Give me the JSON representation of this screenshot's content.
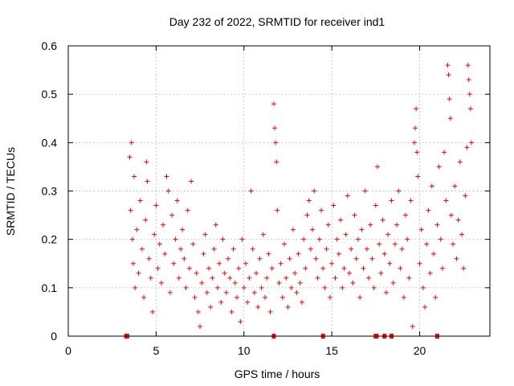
{
  "chart_data": {
    "type": "scatter",
    "title": "Day 232 of 2022, SRMTID for receiver ind1",
    "xlabel": "GPS time / hours",
    "ylabel": "SRMTID / TECUs",
    "xlim": [
      0,
      24
    ],
    "ylim": [
      0,
      0.6
    ],
    "x_ticks": [
      0,
      5,
      10,
      15,
      20
    ],
    "x_tick_labels": [
      "0",
      "5",
      "10",
      "15",
      "20"
    ],
    "y_ticks": [
      0,
      0.1,
      0.2,
      0.3,
      0.4,
      0.5,
      0.6
    ],
    "y_tick_labels": [
      "0",
      "0.1",
      "0.2",
      "0.3",
      "0.4",
      "0.5",
      "0.6"
    ],
    "grid": true,
    "marker": "+",
    "color": "#ff0000",
    "series": [
      {
        "name": "SRMTID",
        "points": [
          [
            3.5,
            0.37
          ],
          [
            3.55,
            0.26
          ],
          [
            3.6,
            0.4
          ],
          [
            3.65,
            0.2
          ],
          [
            3.7,
            0.15
          ],
          [
            3.75,
            0.33
          ],
          [
            3.8,
            0.1
          ],
          [
            3.9,
            0.22
          ],
          [
            4.0,
            0.13
          ],
          [
            4.1,
            0.28
          ],
          [
            4.2,
            0.18
          ],
          [
            4.3,
            0.08
          ],
          [
            4.4,
            0.24
          ],
          [
            4.45,
            0.36
          ],
          [
            4.5,
            0.32
          ],
          [
            4.6,
            0.16
          ],
          [
            4.7,
            0.12
          ],
          [
            4.8,
            0.05
          ],
          [
            4.9,
            0.21
          ],
          [
            5.0,
            0.27
          ],
          [
            5.1,
            0.14
          ],
          [
            5.2,
            0.19
          ],
          [
            5.3,
            0.11
          ],
          [
            5.4,
            0.23
          ],
          [
            5.5,
            0.17
          ],
          [
            5.6,
            0.33
          ],
          [
            5.7,
            0.3
          ],
          [
            5.8,
            0.09
          ],
          [
            5.9,
            0.25
          ],
          [
            6.0,
            0.15
          ],
          [
            6.1,
            0.2
          ],
          [
            6.2,
            0.28
          ],
          [
            6.3,
            0.12
          ],
          [
            6.4,
            0.18
          ],
          [
            6.5,
            0.22
          ],
          [
            6.6,
            0.16
          ],
          [
            6.7,
            0.1
          ],
          [
            6.8,
            0.26
          ],
          [
            6.9,
            0.14
          ],
          [
            7.0,
            0.32
          ],
          [
            7.1,
            0.19
          ],
          [
            7.2,
            0.08
          ],
          [
            7.3,
            0.13
          ],
          [
            7.4,
            0.05
          ],
          [
            7.5,
            0.02
          ],
          [
            7.6,
            0.11
          ],
          [
            7.7,
            0.17
          ],
          [
            7.8,
            0.21
          ],
          [
            7.9,
            0.09
          ],
          [
            8.0,
            0.14
          ],
          [
            8.1,
            0.06
          ],
          [
            8.2,
            0.12
          ],
          [
            8.3,
            0.18
          ],
          [
            8.4,
            0.23
          ],
          [
            8.5,
            0.1
          ],
          [
            8.6,
            0.15
          ],
          [
            8.7,
            0.07
          ],
          [
            8.8,
            0.2
          ],
          [
            8.9,
            0.13
          ],
          [
            9.0,
            0.09
          ],
          [
            9.1,
            0.16
          ],
          [
            9.2,
            0.12
          ],
          [
            9.3,
            0.05
          ],
          [
            9.4,
            0.18
          ],
          [
            9.5,
            0.11
          ],
          [
            9.6,
            0.08
          ],
          [
            9.7,
            0.14
          ],
          [
            9.8,
            0.03
          ],
          [
            9.9,
            0.2
          ],
          [
            10.0,
            0.1
          ],
          [
            10.1,
            0.15
          ],
          [
            10.2,
            0.07
          ],
          [
            10.3,
            0.12
          ],
          [
            10.4,
            0.3
          ],
          [
            10.5,
            0.18
          ],
          [
            10.6,
            0.09
          ],
          [
            10.7,
            0.13
          ],
          [
            10.8,
            0.06
          ],
          [
            10.9,
            0.16
          ],
          [
            11.0,
            0.1
          ],
          [
            11.1,
            0.21
          ],
          [
            11.2,
            0.08
          ],
          [
            11.3,
            0.12
          ],
          [
            11.4,
            0.17
          ],
          [
            11.5,
            0.05
          ],
          [
            11.6,
            0.14
          ],
          [
            11.7,
            0.48
          ],
          [
            11.75,
            0.43
          ],
          [
            11.8,
            0.4
          ],
          [
            11.85,
            0.36
          ],
          [
            11.9,
            0.26
          ],
          [
            12.0,
            0.11
          ],
          [
            12.1,
            0.15
          ],
          [
            12.2,
            0.08
          ],
          [
            12.3,
            0.19
          ],
          [
            12.4,
            0.12
          ],
          [
            12.5,
            0.06
          ],
          [
            12.6,
            0.16
          ],
          [
            12.7,
            0.1
          ],
          [
            12.8,
            0.22
          ],
          [
            12.9,
            0.13
          ],
          [
            13.0,
            0.09
          ],
          [
            13.1,
            0.17
          ],
          [
            13.2,
            0.11
          ],
          [
            13.3,
            0.07
          ],
          [
            13.4,
            0.2
          ],
          [
            13.5,
            0.14
          ],
          [
            13.6,
            0.25
          ],
          [
            13.7,
            0.28
          ],
          [
            13.8,
            0.18
          ],
          [
            13.9,
            0.22
          ],
          [
            14.0,
            0.3
          ],
          [
            14.1,
            0.16
          ],
          [
            14.2,
            0.12
          ],
          [
            14.3,
            0.2
          ],
          [
            14.4,
            0.26
          ],
          [
            14.5,
            0.14
          ],
          [
            14.6,
            0.1
          ],
          [
            14.7,
            0.18
          ],
          [
            14.8,
            0.23
          ],
          [
            14.9,
            0.08
          ],
          [
            15.0,
            0.15
          ],
          [
            15.1,
            0.27
          ],
          [
            15.2,
            0.12
          ],
          [
            15.3,
            0.2
          ],
          [
            15.4,
            0.17
          ],
          [
            15.5,
            0.24
          ],
          [
            15.6,
            0.1
          ],
          [
            15.7,
            0.14
          ],
          [
            15.8,
            0.21
          ],
          [
            15.9,
            0.29
          ],
          [
            16.0,
            0.13
          ],
          [
            16.1,
            0.18
          ],
          [
            16.2,
            0.11
          ],
          [
            16.3,
            0.25
          ],
          [
            16.4,
            0.16
          ],
          [
            16.5,
            0.2
          ],
          [
            16.6,
            0.08
          ],
          [
            16.7,
            0.22
          ],
          [
            16.8,
            0.14
          ],
          [
            16.9,
            0.3
          ],
          [
            17.0,
            0.18
          ],
          [
            17.1,
            0.12
          ],
          [
            17.2,
            0.23
          ],
          [
            17.3,
            0.16
          ],
          [
            17.4,
            0.1
          ],
          [
            17.5,
            0.27
          ],
          [
            17.6,
            0.35
          ],
          [
            17.7,
            0.19
          ],
          [
            17.8,
            0.13
          ],
          [
            17.9,
            0.24
          ],
          [
            18.0,
            0.17
          ],
          [
            18.1,
            0.09
          ],
          [
            18.2,
            0.21
          ],
          [
            18.3,
            0.15
          ],
          [
            18.4,
            0.28
          ],
          [
            18.5,
            0.11
          ],
          [
            18.6,
            0.19
          ],
          [
            18.7,
            0.23
          ],
          [
            18.8,
            0.3
          ],
          [
            18.9,
            0.14
          ],
          [
            19.0,
            0.18
          ],
          [
            19.1,
            0.08
          ],
          [
            19.2,
            0.25
          ],
          [
            19.3,
            0.2
          ],
          [
            19.4,
            0.12
          ],
          [
            19.5,
            0.28
          ],
          [
            19.6,
            0.02
          ],
          [
            19.7,
            0.4
          ],
          [
            19.75,
            0.43
          ],
          [
            19.8,
            0.47
          ],
          [
            19.85,
            0.38
          ],
          [
            19.9,
            0.33
          ],
          [
            20.0,
            0.15
          ],
          [
            20.1,
            0.22
          ],
          [
            20.2,
            0.1
          ],
          [
            20.3,
            0.06
          ],
          [
            20.4,
            0.19
          ],
          [
            20.5,
            0.26
          ],
          [
            20.6,
            0.13
          ],
          [
            20.7,
            0.31
          ],
          [
            20.8,
            0.17
          ],
          [
            20.9,
            0.08
          ],
          [
            21.0,
            0.23
          ],
          [
            21.1,
            0.35
          ],
          [
            21.2,
            0.2
          ],
          [
            21.3,
            0.14
          ],
          [
            21.4,
            0.38
          ],
          [
            21.5,
            0.28
          ],
          [
            21.6,
            0.56
          ],
          [
            21.65,
            0.54
          ],
          [
            21.7,
            0.49
          ],
          [
            21.75,
            0.45
          ],
          [
            21.8,
            0.25
          ],
          [
            21.9,
            0.19
          ],
          [
            22.0,
            0.31
          ],
          [
            22.1,
            0.16
          ],
          [
            22.2,
            0.24
          ],
          [
            22.3,
            0.36
          ],
          [
            22.4,
            0.21
          ],
          [
            22.5,
            0.14
          ],
          [
            22.6,
            0.29
          ],
          [
            22.7,
            0.39
          ],
          [
            22.75,
            0.56
          ],
          [
            22.8,
            0.53
          ],
          [
            22.85,
            0.5
          ],
          [
            22.9,
            0.47
          ],
          [
            22.95,
            0.4
          ]
        ]
      }
    ],
    "zero_markers_x": [
      3.3,
      3.35,
      11.7,
      14.5,
      17.5,
      17.55,
      18.0,
      18.4,
      21.0
    ]
  }
}
